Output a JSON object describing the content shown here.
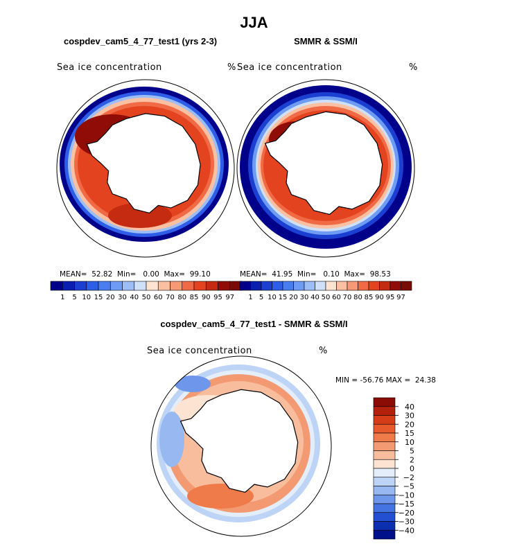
{
  "header": {
    "title": "JJA",
    "left_subtitle": "cospdev_cam5_4_77_test1 (yrs 2-3)",
    "right_subtitle": "SMMR & SSM/I",
    "diff_subtitle": "cospdev_cam5_4_77_test1 - SMMR & SSM/I"
  },
  "panels": {
    "left": {
      "field_label": "Sea ice concentration",
      "unit": "%",
      "mean_label": "MEAN=",
      "mean_value": "52.82",
      "min_label": "Min=",
      "min_value": "0.00",
      "max_label": "Max=",
      "max_value": "99.10"
    },
    "right": {
      "field_label": "Sea ice concentration",
      "unit": "%",
      "mean_label": "MEAN=",
      "mean_value": "41.95",
      "min_label": "Min=",
      "min_value": "0.10",
      "max_label": "Max=",
      "max_value": "98.53"
    },
    "diff": {
      "field_label": "Sea ice concentration",
      "unit": "%",
      "minmax_text": "MIN = -56.76 MAX =  24.38"
    }
  },
  "chart_data": [
    {
      "type": "heatmap",
      "title": "cospdev_cam5_4_77_test1 (yrs 2-3)",
      "field": "Sea ice concentration",
      "unit": "%",
      "projection": "south polar stereographic",
      "stats": {
        "mean": 52.82,
        "min": 0.0,
        "max": 99.1
      },
      "colorbar_levels": [
        1,
        5,
        10,
        15,
        20,
        30,
        40,
        50,
        60,
        70,
        80,
        85,
        90,
        95,
        97
      ]
    },
    {
      "type": "heatmap",
      "title": "SMMR & SSM/I",
      "field": "Sea ice concentration",
      "unit": "%",
      "projection": "south polar stereographic",
      "stats": {
        "mean": 41.95,
        "min": 0.1,
        "max": 98.53
      },
      "colorbar_levels": [
        1,
        5,
        10,
        15,
        20,
        30,
        40,
        50,
        60,
        70,
        80,
        85,
        90,
        95,
        97
      ]
    },
    {
      "type": "heatmap",
      "title": "cospdev_cam5_4_77_test1 - SMMR & SSM/I",
      "field": "Sea ice concentration",
      "unit": "%",
      "projection": "south polar stereographic",
      "stats": {
        "min": -56.76,
        "max": 24.38
      },
      "colorbar_levels": [
        40,
        30,
        20,
        15,
        10,
        5,
        2,
        0,
        -2,
        -5,
        -10,
        -15,
        -20,
        -30,
        -40
      ]
    }
  ],
  "colorbars": {
    "abs_labels": [
      "1",
      "5",
      "10",
      "15",
      "20",
      "30",
      "40",
      "50",
      "60",
      "70",
      "80",
      "85",
      "90",
      "95",
      "97"
    ],
    "abs_colors": [
      "#00008b",
      "#0a1fb0",
      "#1b3fd0",
      "#2e5ee8",
      "#4a7ef0",
      "#6e9cf4",
      "#9cbdf6",
      "#cfe0f8",
      "#fde3d0",
      "#fbc0a2",
      "#f79876",
      "#f06a45",
      "#e4431f",
      "#c42b10",
      "#8f0d06",
      "#7a0a04"
    ],
    "diff_labels": [
      "40",
      "30",
      "20",
      "15",
      "10",
      "5",
      "2",
      "0",
      "−2",
      "−5",
      "−10",
      "−15",
      "−20",
      "−30",
      "−40"
    ],
    "diff_colors": [
      "#8a0c04",
      "#b3200b",
      "#d53d18",
      "#e65a2c",
      "#ef7a4a",
      "#f49a72",
      "#f8bd9d",
      "#fce3d2",
      "#e4eefa",
      "#bed4f6",
      "#98b8f2",
      "#6e97ec",
      "#4473e2",
      "#2350d0",
      "#0c2fb0",
      "#00108a"
    ]
  }
}
